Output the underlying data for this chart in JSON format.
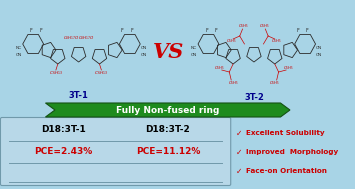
{
  "background_color": "#a8d4e6",
  "vs_text": "VS",
  "vs_color": "#cc0000",
  "banner_text": "Fully Non-fused ring",
  "banner_bg": "#1e8b1e",
  "banner_edge": "#145214",
  "banner_text_color": "#ffffff",
  "label_3t1": "3T-1",
  "label_3t2": "3T-2",
  "label_color": "#00008b",
  "table_bg": "#b8d8e8",
  "table_border_color": "#7099aa",
  "col1_header": "D18:3T-1",
  "col2_header": "D18:3T-2",
  "col1_value": "PCE=2.43%",
  "col2_value": "PCE=11.12%",
  "table_header_color": "#000000",
  "table_value_color": "#cc0000",
  "check_color": "#cc0000",
  "bullet1": "Excellent Solubility",
  "bullet2": "Improved  Morphology",
  "bullet3": "Face-on Orientation",
  "bullet_color": "#cc0000",
  "mol_color": "#2a2a2a",
  "side_chain_color": "#cc0000"
}
